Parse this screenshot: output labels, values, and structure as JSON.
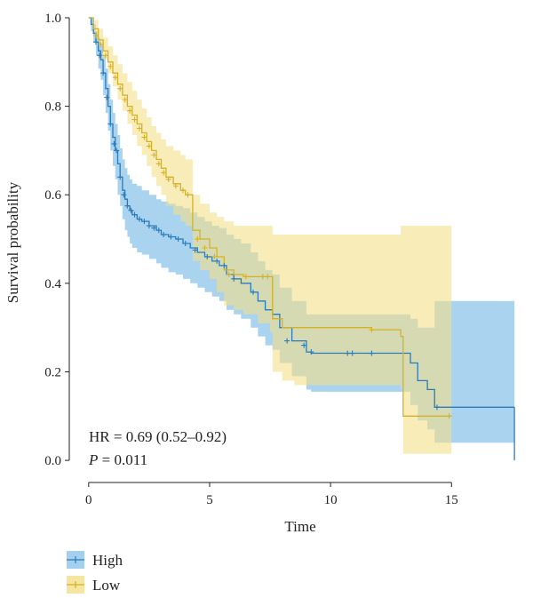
{
  "chart_data": {
    "type": "line",
    "subtype": "kaplan-meier",
    "xlabel": "Time",
    "ylabel": "Survival probability",
    "xlim": [
      -0.8,
      18
    ],
    "ylim": [
      -0.05,
      1.02
    ],
    "xticks": [
      0,
      5,
      10,
      15
    ],
    "yticks": [
      0.0,
      0.2,
      0.4,
      0.6,
      0.8,
      1.0
    ],
    "xtick_labels": [
      "0",
      "5",
      "10",
      "15"
    ],
    "ytick_labels": [
      "0.0",
      "0.2",
      "0.4",
      "0.6",
      "0.8",
      "1.0"
    ],
    "grid": false,
    "legend": "bottom-left",
    "annotations": {
      "hr": "HR = 0.69 (0.52–0.92)",
      "p_label": "P",
      "p_value": " = 0.011"
    },
    "series": [
      {
        "name": "High",
        "color": "#2b7bba",
        "band_color": "#8cc4ea",
        "x": [
          0,
          0.1,
          0.2,
          0.3,
          0.4,
          0.5,
          0.6,
          0.7,
          0.8,
          0.9,
          1.0,
          1.1,
          1.2,
          1.3,
          1.4,
          1.5,
          1.6,
          1.7,
          1.8,
          2.0,
          2.2,
          2.5,
          2.8,
          3.0,
          3.3,
          3.6,
          3.9,
          4.2,
          4.5,
          4.8,
          5.1,
          5.4,
          5.7,
          6.0,
          6.3,
          6.7,
          7.0,
          7.3,
          7.6,
          7.9,
          8.4,
          9.0,
          9.2,
          9.8,
          10.8,
          11.8,
          12.3,
          12.7,
          13.3,
          13.6,
          14.0,
          14.3,
          17.6
        ],
        "y": [
          1.0,
          0.985,
          0.965,
          0.945,
          0.925,
          0.905,
          0.875,
          0.84,
          0.8,
          0.76,
          0.73,
          0.7,
          0.67,
          0.64,
          0.61,
          0.59,
          0.575,
          0.565,
          0.555,
          0.545,
          0.54,
          0.53,
          0.52,
          0.51,
          0.505,
          0.5,
          0.49,
          0.48,
          0.47,
          0.46,
          0.45,
          0.44,
          0.42,
          0.41,
          0.4,
          0.38,
          0.36,
          0.34,
          0.33,
          0.3,
          0.27,
          0.245,
          0.242,
          0.242,
          0.242,
          0.242,
          0.242,
          0.242,
          0.22,
          0.18,
          0.16,
          0.12,
          0.12
        ],
        "lower": [
          1.0,
          0.97,
          0.945,
          0.915,
          0.885,
          0.86,
          0.825,
          0.785,
          0.745,
          0.7,
          0.665,
          0.635,
          0.6,
          0.575,
          0.545,
          0.52,
          0.505,
          0.49,
          0.48,
          0.47,
          0.465,
          0.455,
          0.445,
          0.435,
          0.425,
          0.42,
          0.41,
          0.4,
          0.39,
          0.38,
          0.37,
          0.36,
          0.34,
          0.33,
          0.32,
          0.3,
          0.28,
          0.26,
          0.25,
          0.22,
          0.19,
          0.16,
          0.155,
          0.155,
          0.155,
          0.155,
          0.155,
          0.155,
          0.125,
          0.09,
          0.07,
          0.04,
          0.04
        ],
        "upper": [
          1.0,
          1.0,
          0.985,
          0.97,
          0.955,
          0.94,
          0.915,
          0.885,
          0.85,
          0.815,
          0.785,
          0.76,
          0.735,
          0.705,
          0.68,
          0.66,
          0.645,
          0.635,
          0.625,
          0.62,
          0.61,
          0.6,
          0.59,
          0.585,
          0.58,
          0.575,
          0.57,
          0.56,
          0.55,
          0.54,
          0.53,
          0.525,
          0.51,
          0.5,
          0.49,
          0.47,
          0.45,
          0.43,
          0.42,
          0.39,
          0.36,
          0.33,
          0.33,
          0.33,
          0.33,
          0.33,
          0.33,
          0.33,
          0.32,
          0.3,
          0.3,
          0.36,
          0.36
        ],
        "censor_x": [
          0.3,
          0.45,
          0.6,
          0.75,
          0.9,
          1.05,
          1.15,
          1.3,
          1.45,
          1.6,
          1.75,
          1.9,
          2.1,
          2.3,
          2.5,
          2.7,
          2.9,
          3.1,
          3.4,
          3.7,
          4.0,
          4.4,
          4.9,
          5.3,
          5.6,
          6.0,
          6.8,
          8.2,
          8.9,
          9.2,
          10.7,
          10.9,
          11.7,
          14.4
        ],
        "censor_y": [
          0.945,
          0.915,
          0.875,
          0.82,
          0.76,
          0.715,
          0.7,
          0.64,
          0.6,
          0.575,
          0.565,
          0.555,
          0.545,
          0.54,
          0.53,
          0.525,
          0.52,
          0.51,
          0.505,
          0.5,
          0.49,
          0.475,
          0.46,
          0.45,
          0.44,
          0.41,
          0.38,
          0.27,
          0.26,
          0.245,
          0.242,
          0.242,
          0.242,
          0.12
        ]
      },
      {
        "name": "Low",
        "color": "#d4b227",
        "band_color": "#f3df8a",
        "x": [
          0,
          0.2,
          0.4,
          0.6,
          0.8,
          1.0,
          1.2,
          1.4,
          1.6,
          1.8,
          2.0,
          2.2,
          2.4,
          2.6,
          2.8,
          3.0,
          3.2,
          3.5,
          3.8,
          4.0,
          4.3,
          4.6,
          5.0,
          5.3,
          5.6,
          6.0,
          6.4,
          7.0,
          7.5,
          7.6,
          8.0,
          8.5,
          9.0,
          10.0,
          11.7,
          12.5,
          12.9,
          13.0,
          15.0
        ],
        "y": [
          1.0,
          0.975,
          0.95,
          0.925,
          0.9,
          0.875,
          0.85,
          0.825,
          0.8,
          0.78,
          0.76,
          0.74,
          0.72,
          0.7,
          0.68,
          0.66,
          0.64,
          0.625,
          0.61,
          0.6,
          0.52,
          0.5,
          0.48,
          0.46,
          0.43,
          0.42,
          0.415,
          0.415,
          0.415,
          0.32,
          0.3,
          0.3,
          0.3,
          0.3,
          0.295,
          0.295,
          0.28,
          0.1,
          0.1
        ],
        "lower": [
          1.0,
          0.965,
          0.935,
          0.905,
          0.875,
          0.845,
          0.815,
          0.79,
          0.76,
          0.735,
          0.71,
          0.69,
          0.665,
          0.64,
          0.62,
          0.6,
          0.575,
          0.555,
          0.54,
          0.53,
          0.45,
          0.43,
          0.41,
          0.38,
          0.35,
          0.34,
          0.33,
          0.31,
          0.29,
          0.2,
          0.18,
          0.17,
          0.17,
          0.17,
          0.17,
          0.17,
          0.16,
          0.015,
          0.015
        ],
        "upper": [
          1.0,
          0.995,
          0.975,
          0.955,
          0.935,
          0.915,
          0.895,
          0.875,
          0.855,
          0.835,
          0.815,
          0.795,
          0.775,
          0.755,
          0.74,
          0.725,
          0.71,
          0.7,
          0.69,
          0.68,
          0.6,
          0.58,
          0.56,
          0.55,
          0.54,
          0.53,
          0.53,
          0.53,
          0.53,
          0.51,
          0.51,
          0.51,
          0.51,
          0.51,
          0.51,
          0.51,
          0.53,
          0.53,
          0.53
        ],
        "censor_x": [
          0.3,
          0.5,
          0.7,
          0.9,
          1.1,
          1.3,
          1.5,
          1.7,
          1.9,
          2.1,
          2.3,
          2.5,
          2.7,
          2.9,
          3.1,
          3.3,
          3.6,
          3.9,
          4.1,
          4.5,
          4.8,
          5.2,
          5.8,
          6.5,
          7.2,
          7.4,
          11.7,
          14.9
        ],
        "censor_y": [
          0.96,
          0.94,
          0.915,
          0.89,
          0.865,
          0.84,
          0.815,
          0.79,
          0.77,
          0.75,
          0.73,
          0.71,
          0.69,
          0.67,
          0.65,
          0.635,
          0.62,
          0.61,
          0.6,
          0.5,
          0.48,
          0.46,
          0.42,
          0.415,
          0.415,
          0.415,
          0.295,
          0.1
        ]
      }
    ]
  }
}
